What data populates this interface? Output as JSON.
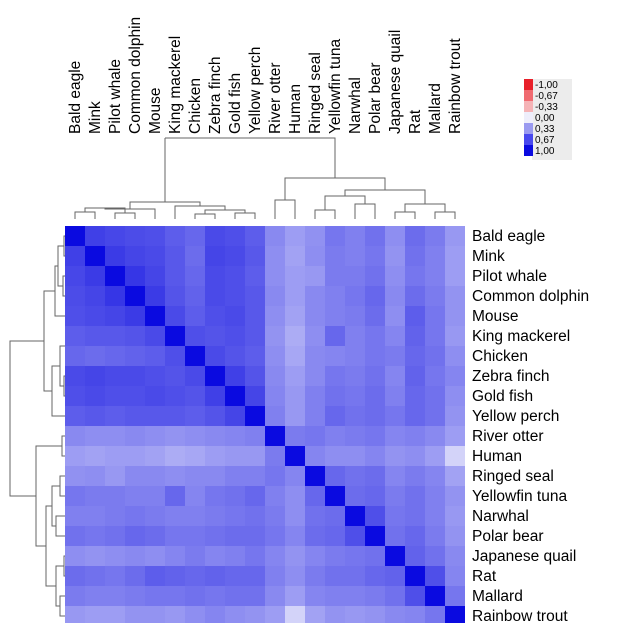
{
  "chart_data": {
    "type": "heatmap",
    "title": "",
    "labels": [
      "Bald eagle",
      "Mink",
      "Pilot whale",
      "Common dolphin",
      "Mouse",
      "King mackerel",
      "Chicken",
      "Zebra finch",
      "Gold fish",
      "Yellow perch",
      "River otter",
      "Human",
      "Ringed seal",
      "Yellowfin tuna",
      "Narwhal",
      "Polar bear",
      "Japanese quail",
      "Rat",
      "Mallard",
      "Rainbow trout"
    ],
    "matrix": [
      [
        1.0,
        0.78,
        0.75,
        0.73,
        0.72,
        0.66,
        0.62,
        0.74,
        0.72,
        0.66,
        0.48,
        0.4,
        0.45,
        0.56,
        0.52,
        0.58,
        0.46,
        0.6,
        0.54,
        0.42
      ],
      [
        0.78,
        1.0,
        0.8,
        0.76,
        0.74,
        0.68,
        0.6,
        0.76,
        0.74,
        0.68,
        0.46,
        0.38,
        0.46,
        0.54,
        0.52,
        0.56,
        0.44,
        0.58,
        0.52,
        0.4
      ],
      [
        0.75,
        0.8,
        1.0,
        0.82,
        0.76,
        0.68,
        0.62,
        0.74,
        0.72,
        0.66,
        0.46,
        0.4,
        0.42,
        0.54,
        0.54,
        0.58,
        0.46,
        0.56,
        0.52,
        0.4
      ],
      [
        0.73,
        0.76,
        0.82,
        1.0,
        0.8,
        0.7,
        0.64,
        0.74,
        0.72,
        0.68,
        0.48,
        0.4,
        0.48,
        0.52,
        0.56,
        0.62,
        0.48,
        0.6,
        0.54,
        0.44
      ],
      [
        0.72,
        0.74,
        0.76,
        0.8,
        1.0,
        0.74,
        0.66,
        0.72,
        0.74,
        0.68,
        0.46,
        0.38,
        0.48,
        0.52,
        0.54,
        0.6,
        0.46,
        0.66,
        0.56,
        0.44
      ],
      [
        0.66,
        0.68,
        0.68,
        0.7,
        0.74,
        1.0,
        0.72,
        0.7,
        0.72,
        0.68,
        0.44,
        0.34,
        0.46,
        0.62,
        0.52,
        0.56,
        0.5,
        0.64,
        0.56,
        0.42
      ],
      [
        0.62,
        0.6,
        0.62,
        0.64,
        0.66,
        0.72,
        1.0,
        0.74,
        0.7,
        0.66,
        0.46,
        0.36,
        0.48,
        0.5,
        0.52,
        0.56,
        0.54,
        0.62,
        0.58,
        0.46
      ],
      [
        0.74,
        0.76,
        0.74,
        0.74,
        0.72,
        0.7,
        0.74,
        1.0,
        0.78,
        0.7,
        0.48,
        0.4,
        0.48,
        0.56,
        0.54,
        0.58,
        0.5,
        0.64,
        0.56,
        0.5
      ],
      [
        0.72,
        0.74,
        0.72,
        0.72,
        0.74,
        0.72,
        0.7,
        0.78,
        1.0,
        0.76,
        0.5,
        0.42,
        0.52,
        0.58,
        0.56,
        0.6,
        0.52,
        0.62,
        0.58,
        0.46
      ],
      [
        0.66,
        0.68,
        0.66,
        0.68,
        0.68,
        0.68,
        0.66,
        0.7,
        0.76,
        1.0,
        0.52,
        0.42,
        0.52,
        0.62,
        0.58,
        0.6,
        0.56,
        0.62,
        0.58,
        0.44
      ],
      [
        0.48,
        0.46,
        0.46,
        0.48,
        0.46,
        0.44,
        0.46,
        0.48,
        0.5,
        0.52,
        1.0,
        0.54,
        0.56,
        0.52,
        0.54,
        0.56,
        0.5,
        0.52,
        0.48,
        0.4
      ],
      [
        0.4,
        0.38,
        0.4,
        0.4,
        0.38,
        0.34,
        0.36,
        0.4,
        0.42,
        0.42,
        0.54,
        1.0,
        0.5,
        0.46,
        0.46,
        0.5,
        0.44,
        0.46,
        0.4,
        0.18
      ],
      [
        0.45,
        0.46,
        0.42,
        0.48,
        0.48,
        0.46,
        0.48,
        0.48,
        0.52,
        0.52,
        0.56,
        0.5,
        1.0,
        0.62,
        0.58,
        0.6,
        0.5,
        0.54,
        0.5,
        0.38
      ],
      [
        0.56,
        0.54,
        0.54,
        0.52,
        0.52,
        0.62,
        0.5,
        0.56,
        0.58,
        0.62,
        0.52,
        0.46,
        0.62,
        1.0,
        0.6,
        0.62,
        0.54,
        0.58,
        0.52,
        0.44
      ],
      [
        0.52,
        0.52,
        0.54,
        0.56,
        0.54,
        0.52,
        0.52,
        0.54,
        0.56,
        0.58,
        0.54,
        0.46,
        0.58,
        0.6,
        1.0,
        0.72,
        0.56,
        0.58,
        0.52,
        0.42
      ],
      [
        0.58,
        0.56,
        0.58,
        0.62,
        0.6,
        0.56,
        0.56,
        0.58,
        0.6,
        0.6,
        0.56,
        0.5,
        0.6,
        0.62,
        0.72,
        1.0,
        0.58,
        0.62,
        0.54,
        0.44
      ],
      [
        0.46,
        0.44,
        0.46,
        0.48,
        0.46,
        0.5,
        0.54,
        0.5,
        0.52,
        0.56,
        0.5,
        0.44,
        0.5,
        0.54,
        0.56,
        0.58,
        1.0,
        0.64,
        0.58,
        0.48
      ],
      [
        0.6,
        0.58,
        0.56,
        0.6,
        0.66,
        0.64,
        0.62,
        0.64,
        0.62,
        0.62,
        0.52,
        0.46,
        0.54,
        0.58,
        0.58,
        0.62,
        0.64,
        1.0,
        0.72,
        0.5
      ],
      [
        0.54,
        0.52,
        0.52,
        0.54,
        0.56,
        0.56,
        0.58,
        0.56,
        0.58,
        0.58,
        0.48,
        0.4,
        0.5,
        0.52,
        0.52,
        0.54,
        0.58,
        0.72,
        1.0,
        0.56
      ],
      [
        0.42,
        0.4,
        0.4,
        0.44,
        0.44,
        0.42,
        0.46,
        0.5,
        0.46,
        0.44,
        0.4,
        0.18,
        0.38,
        0.44,
        0.42,
        0.44,
        0.48,
        0.5,
        0.56,
        1.0
      ]
    ],
    "legend": {
      "ticks": [
        "-1,00",
        "-0,67",
        "-0,33",
        "0,00",
        "0,33",
        "0,67",
        "1,00"
      ],
      "colors": [
        "#e8202a",
        "#f06a70",
        "#f5b3b6",
        "#eeeefb",
        "#9a9af0",
        "#4848ee",
        "#0a0ae0"
      ],
      "placement": "top-right"
    },
    "col_dendrogram": "top",
    "row_dendrogram": "left"
  }
}
